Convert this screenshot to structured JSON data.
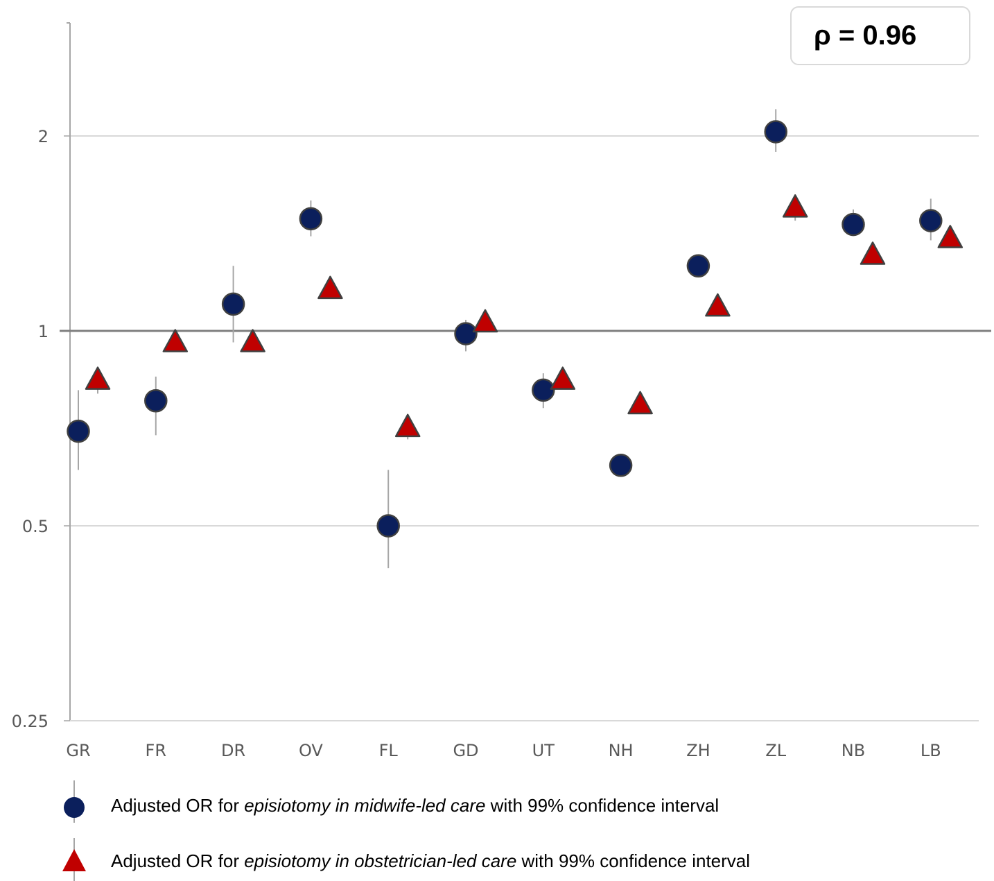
{
  "chart_data": {
    "type": "scatter",
    "yscale": "log2",
    "ylim": [
      0.25,
      2.8
    ],
    "y_ticks": [
      "2",
      "1",
      "0.5",
      "0.25"
    ],
    "y_tick_values": [
      2,
      1,
      0.5,
      0.25
    ],
    "reference_line": 1,
    "categories": [
      "GR",
      "FR",
      "DR",
      "OV",
      "FL",
      "GD",
      "UT",
      "NH",
      "ZH",
      "ZL",
      "NB",
      "LB"
    ],
    "series": [
      {
        "name": "Adjusted OR for episiotomy in midwife-led care with 99% confidence interval",
        "marker": "circle",
        "color": "#0b1f5c",
        "values": [
          0.7,
          0.78,
          1.1,
          1.49,
          0.5,
          0.99,
          0.81,
          0.62,
          1.26,
          2.03,
          1.46,
          1.48
        ],
        "ci_low": [
          0.61,
          0.69,
          0.96,
          1.4,
          0.43,
          0.93,
          0.76,
          0.6,
          1.23,
          1.89,
          1.41,
          1.38
        ],
        "ci_high": [
          0.81,
          0.85,
          1.26,
          1.59,
          0.61,
          1.04,
          0.86,
          0.64,
          1.31,
          2.2,
          1.54,
          1.6
        ]
      },
      {
        "name": "Adjusted OR for episiotomy in obstetrician-led care with 99% confidence interval",
        "marker": "triangle",
        "color": "#c00000",
        "values": [
          0.84,
          0.96,
          0.96,
          1.16,
          0.71,
          1.03,
          0.84,
          0.77,
          1.09,
          1.55,
          1.31,
          1.39
        ],
        "ci_low": [
          0.8,
          0.93,
          0.93,
          1.14,
          0.68,
          1.02,
          0.83,
          0.76,
          1.08,
          1.48,
          1.29,
          1.37
        ],
        "ci_high": [
          0.88,
          1.0,
          1.0,
          1.18,
          0.74,
          1.04,
          0.85,
          0.78,
          1.1,
          1.62,
          1.33,
          1.41
        ]
      }
    ],
    "annotation": "ρ = 0.96",
    "grid": true,
    "legend_position": "bottom"
  },
  "legend": {
    "items": [
      {
        "prefix": "Adjusted OR for ",
        "italic": "episiotomy in midwife-led care",
        "suffix": " with 99% confidence interval"
      },
      {
        "prefix": "Adjusted OR for ",
        "italic": "episiotomy in obstetrician-led care",
        "suffix": " with 99% confidence interval"
      }
    ]
  },
  "colors": {
    "circle": "#0b1f5c",
    "triangle": "#c00000",
    "grid": "#d9d9d9",
    "axis": "#a6a6a6",
    "refline": "#7f7f7f"
  }
}
